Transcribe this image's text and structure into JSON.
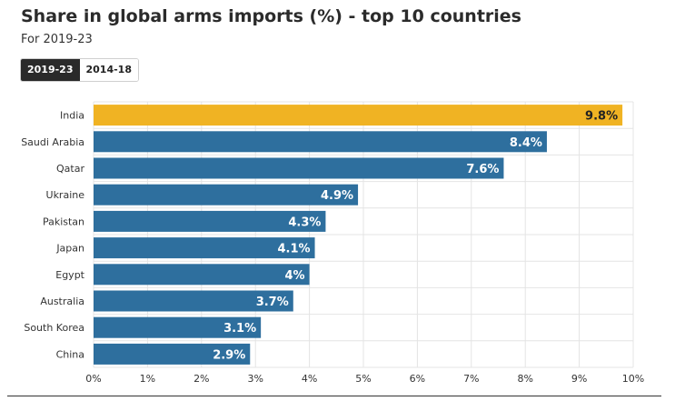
{
  "header": {
    "title": "Share in global arms imports (%) - top 10 countries",
    "subtitle": "For 2019-23"
  },
  "toggle": {
    "options": [
      "2019-23",
      "2014-18"
    ],
    "selected": "2019-23"
  },
  "colors": {
    "highlight": "#F0B323",
    "bar": "#2E6F9E",
    "grid": "#E4E4E4",
    "label_light": "#FFFFFF",
    "label_dark": "#222222"
  },
  "chart_data": {
    "type": "bar",
    "orientation": "horizontal",
    "categories": [
      "India",
      "Saudi Arabia",
      "Qatar",
      "Ukraine",
      "Pakistan",
      "Japan",
      "Egypt",
      "Australia",
      "South Korea",
      "China"
    ],
    "values": [
      9.8,
      8.4,
      7.6,
      4.9,
      4.3,
      4.1,
      4,
      3.7,
      3.1,
      2.9
    ],
    "data_labels": [
      "9.8%",
      "8.4%",
      "7.6%",
      "4.9%",
      "4.3%",
      "4.1%",
      "4%",
      "3.7%",
      "3.1%",
      "2.9%"
    ],
    "highlighted_category": "India",
    "title": "Share in global arms imports (%) - top 10 countries",
    "xlabel": "",
    "ylabel": "",
    "xlim": [
      0,
      10
    ],
    "x_ticks": [
      "0%",
      "1%",
      "2%",
      "3%",
      "4%",
      "5%",
      "6%",
      "7%",
      "8%",
      "9%",
      "10%"
    ],
    "grid": true
  }
}
